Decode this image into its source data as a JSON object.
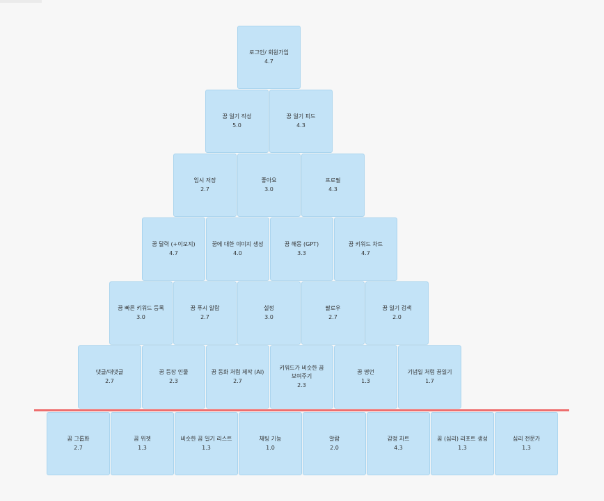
{
  "colors": {
    "background": "#f7f7f7",
    "card_fill": "#c3e3f7",
    "card_border": "#a9d4ee",
    "divider": "#ee6e6e"
  },
  "rows": [
    [
      {
        "name": "로그인/ 회원가입",
        "score": "4.7"
      }
    ],
    [
      {
        "name": "꿈 일기 작성",
        "score": "5.0"
      },
      {
        "name": "꿈 일기 피드",
        "score": "4.3"
      }
    ],
    [
      {
        "name": "임시 저장",
        "score": "2.7"
      },
      {
        "name": "좋아요",
        "score": "3.0"
      },
      {
        "name": "프로필",
        "score": "4.3"
      }
    ],
    [
      {
        "name": "꿈 달력 (+이모지)",
        "score": "4.7"
      },
      {
        "name": "꿈에 대한 이미지 생성",
        "score": "4.0"
      },
      {
        "name": "꿈 해몽 (GPT)",
        "score": "3.3"
      },
      {
        "name": "꿈 키워드 차트",
        "score": "4.7"
      }
    ],
    [
      {
        "name": "꿈 빠른 키워드 등록",
        "score": "3.0"
      },
      {
        "name": "꿈 푸시 알람",
        "score": "2.7"
      },
      {
        "name": "설정",
        "score": "3.0"
      },
      {
        "name": "팔로우",
        "score": "2.7"
      },
      {
        "name": "꿈 일기 검색",
        "score": "2.0"
      }
    ],
    [
      {
        "name": "댓글/대댓글",
        "score": "2.7"
      },
      {
        "name": "꿈 등장 인물",
        "score": "2.3"
      },
      {
        "name": "꿈 동화 처럼 제작 (AI)",
        "score": "2.7"
      },
      {
        "name": "키워드가 비슷한 꿈 보여주기",
        "score": "2.3"
      },
      {
        "name": "꿈 명언",
        "score": "1.3"
      },
      {
        "name": "기념일 처럼 꿈일기",
        "score": "1.7"
      }
    ],
    [
      {
        "name": "꿈 그룹화",
        "score": "2.7"
      },
      {
        "name": "꿈 위젯",
        "score": "1.3"
      },
      {
        "name": "비슷한 꿈 일기 리스트",
        "score": "1.3"
      },
      {
        "name": "채팅 기능",
        "score": "1.0"
      },
      {
        "name": "알람",
        "score": "2.0"
      },
      {
        "name": "감정 차트",
        "score": "4.3"
      },
      {
        "name": "꿈 (심리) 리포트 생성",
        "score": "1.3"
      },
      {
        "name": "심리 전문가",
        "score": "1.3"
      }
    ]
  ]
}
